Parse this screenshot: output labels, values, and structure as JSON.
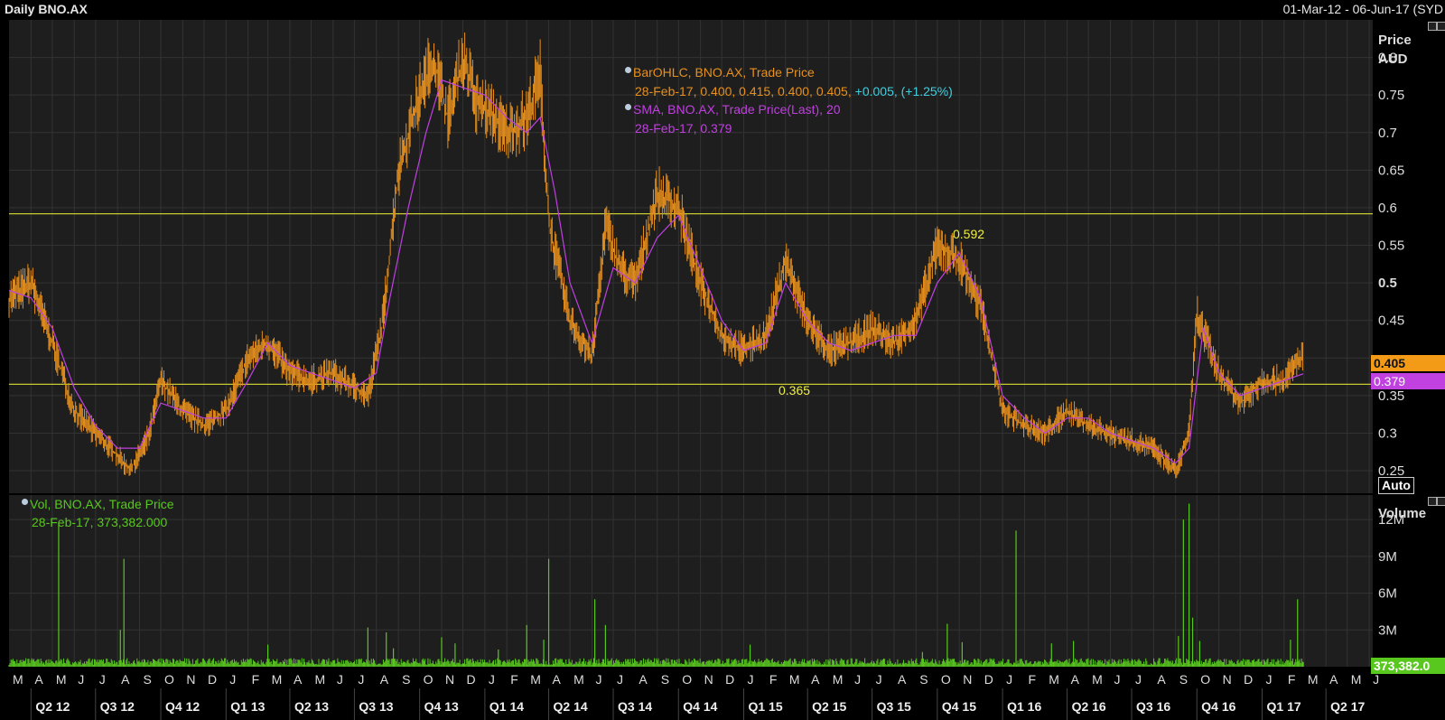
{
  "header": {
    "title": "Daily BNO.AX",
    "date_range": "01-Mar-12 - 06-Jun-17 (SYD"
  },
  "price_panel": {
    "axis_title_1": "Price",
    "axis_title_2": "AUD",
    "auto_button": "Auto",
    "legend": {
      "ohlc_name": "BarOHLC, BNO.AX, Trade Price",
      "ohlc_values": "28-Feb-17, 0.400, 0.415, 0.400, 0.405,",
      "ohlc_change": "+0.005, (+1.25%)",
      "sma_name": "SMA, BNO.AX, Trade Price(Last),  20",
      "sma_values": "28-Feb-17, 0.379"
    },
    "last_price_tag": "0.405",
    "sma_tag": "0.379",
    "line_labels": [
      "0.592",
      "0.365"
    ]
  },
  "volume_panel": {
    "axis_title": "Volume",
    "legend_name": "Vol, BNO.AX, Trade Price",
    "legend_values": "28-Feb-17, 373,382.000",
    "last_volume_tag": "373,382.0"
  },
  "colors": {
    "background": "#000000",
    "panel": "#1e1e1e",
    "grid": "#333333",
    "ohlc": "#e8901c",
    "sma": "#c040e0",
    "volume": "#58c81e",
    "horizontal_line": "#c8c830",
    "change_text": "#3ed0e0",
    "label_yellow": "#f0f040"
  },
  "chart_data": [
    {
      "type": "bar",
      "subtype": "ohlc",
      "title": "Daily BNO.AX",
      "ylabel": "Price AUD",
      "ylim": [
        0.22,
        0.85
      ],
      "yticks": [
        0.25,
        0.3,
        0.35,
        0.4,
        0.45,
        0.5,
        0.55,
        0.6,
        0.65,
        0.7,
        0.75,
        0.8
      ],
      "ytick_labels": [
        "0.25",
        "0.3",
        "0.35",
        "",
        "0.45",
        "0.5",
        "0.55",
        "0.6",
        "0.65",
        "0.7",
        "0.75",
        "0.8"
      ],
      "x_range": [
        "2012-03-01",
        "2017-06-06"
      ],
      "grid": true,
      "horizontal_lines": [
        0.592,
        0.365
      ],
      "series": [
        {
          "name": "BarOHLC, BNO.AX, Trade Price",
          "x": [
            "2012-03-01",
            "2012-04-01",
            "2012-05-01",
            "2012-06-01",
            "2012-07-01",
            "2012-08-01",
            "2012-08-20",
            "2012-09-15",
            "2012-10-01",
            "2012-11-01",
            "2012-12-01",
            "2013-01-01",
            "2013-02-01",
            "2013-03-01",
            "2013-04-01",
            "2013-05-01",
            "2013-06-01",
            "2013-07-01",
            "2013-07-20",
            "2013-08-10",
            "2013-09-01",
            "2013-10-01",
            "2013-10-20",
            "2013-11-10",
            "2013-12-01",
            "2013-12-20",
            "2014-01-15",
            "2014-02-01",
            "2014-03-01",
            "2014-03-20",
            "2014-04-01",
            "2014-05-01",
            "2014-06-01",
            "2014-06-20",
            "2014-07-10",
            "2014-08-01",
            "2014-09-01",
            "2014-10-01",
            "2014-11-01",
            "2014-12-01",
            "2015-01-01",
            "2015-02-01",
            "2015-03-01",
            "2015-04-01",
            "2015-05-01",
            "2015-06-01",
            "2015-07-01",
            "2015-08-01",
            "2015-09-01",
            "2015-10-01",
            "2015-11-01",
            "2015-12-01",
            "2016-01-01",
            "2016-02-01",
            "2016-03-01",
            "2016-04-01",
            "2016-05-01",
            "2016-06-01",
            "2016-07-01",
            "2016-08-01",
            "2016-09-01",
            "2016-09-20",
            "2016-10-01",
            "2016-11-01",
            "2016-12-01",
            "2017-01-01",
            "2017-02-01",
            "2017-02-28"
          ],
          "values": [
            0.48,
            0.5,
            0.42,
            0.33,
            0.3,
            0.27,
            0.25,
            0.3,
            0.37,
            0.33,
            0.31,
            0.33,
            0.4,
            0.42,
            0.38,
            0.37,
            0.38,
            0.36,
            0.35,
            0.45,
            0.65,
            0.75,
            0.8,
            0.72,
            0.8,
            0.74,
            0.72,
            0.7,
            0.72,
            0.78,
            0.58,
            0.45,
            0.4,
            0.58,
            0.52,
            0.5,
            0.62,
            0.6,
            0.5,
            0.43,
            0.41,
            0.43,
            0.53,
            0.45,
            0.41,
            0.42,
            0.44,
            0.42,
            0.45,
            0.55,
            0.53,
            0.47,
            0.33,
            0.31,
            0.3,
            0.33,
            0.31,
            0.3,
            0.29,
            0.28,
            0.25,
            0.3,
            0.46,
            0.38,
            0.34,
            0.37,
            0.37,
            0.405
          ]
        },
        {
          "name": "SMA, BNO.AX, Trade Price(Last),  20",
          "x": [
            "2012-03-01",
            "2012-04-01",
            "2012-05-01",
            "2012-06-01",
            "2012-07-01",
            "2012-08-01",
            "2012-09-01",
            "2012-10-01",
            "2012-11-01",
            "2012-12-01",
            "2013-01-01",
            "2013-02-01",
            "2013-03-01",
            "2013-04-01",
            "2013-05-01",
            "2013-06-01",
            "2013-07-01",
            "2013-08-01",
            "2013-08-20",
            "2013-09-15",
            "2013-10-10",
            "2013-11-01",
            "2013-12-01",
            "2014-01-01",
            "2014-02-01",
            "2014-03-01",
            "2014-03-20",
            "2014-04-10",
            "2014-05-01",
            "2014-06-01",
            "2014-07-01",
            "2014-08-01",
            "2014-09-01",
            "2014-10-01",
            "2014-11-01",
            "2014-12-01",
            "2015-01-01",
            "2015-02-01",
            "2015-03-01",
            "2015-04-01",
            "2015-05-01",
            "2015-06-01",
            "2015-07-01",
            "2015-08-01",
            "2015-09-01",
            "2015-10-01",
            "2015-11-01",
            "2015-12-01",
            "2016-01-01",
            "2016-02-01",
            "2016-03-01",
            "2016-04-01",
            "2016-05-01",
            "2016-06-01",
            "2016-07-01",
            "2016-08-01",
            "2016-09-01",
            "2016-09-20",
            "2016-10-10",
            "2016-11-01",
            "2016-12-01",
            "2017-01-01",
            "2017-02-01",
            "2017-02-28"
          ],
          "values": [
            0.49,
            0.48,
            0.44,
            0.36,
            0.31,
            0.28,
            0.28,
            0.34,
            0.33,
            0.32,
            0.32,
            0.37,
            0.42,
            0.39,
            0.38,
            0.37,
            0.36,
            0.38,
            0.48,
            0.6,
            0.7,
            0.77,
            0.76,
            0.75,
            0.72,
            0.7,
            0.72,
            0.62,
            0.5,
            0.42,
            0.52,
            0.5,
            0.56,
            0.59,
            0.52,
            0.45,
            0.41,
            0.42,
            0.5,
            0.45,
            0.42,
            0.41,
            0.42,
            0.43,
            0.43,
            0.5,
            0.54,
            0.48,
            0.35,
            0.32,
            0.3,
            0.32,
            0.32,
            0.3,
            0.29,
            0.28,
            0.26,
            0.28,
            0.44,
            0.38,
            0.35,
            0.36,
            0.37,
            0.379
          ]
        }
      ],
      "last_value": 0.405,
      "sma_last": 0.379
    },
    {
      "type": "bar",
      "title": "",
      "ylabel": "Volume",
      "ylim": [
        0,
        14000000
      ],
      "yticks": [
        3000000,
        6000000,
        9000000,
        12000000
      ],
      "ytick_labels": [
        "3M",
        "6M",
        "9M",
        "12M"
      ],
      "series": [
        {
          "name": "Vol, BNO.AX, Trade Price",
          "x": [
            "2012-05-10",
            "2012-08-05",
            "2012-08-10",
            "2013-03-01",
            "2013-07-20",
            "2013-08-15",
            "2013-08-25",
            "2013-11-01",
            "2013-11-20",
            "2014-01-20",
            "2014-03-01",
            "2014-03-25",
            "2014-04-01",
            "2014-06-05",
            "2014-06-20",
            "2015-01-10",
            "2015-09-10",
            "2015-10-15",
            "2015-11-05",
            "2016-01-20",
            "2016-03-10",
            "2016-04-10",
            "2016-09-05",
            "2016-09-12",
            "2016-09-20",
            "2016-09-25",
            "2016-10-05",
            "2017-02-10",
            "2017-02-20",
            "2017-02-28"
          ],
          "values": [
            11800000,
            3000000,
            8800000,
            1800000,
            3200000,
            2800000,
            1500000,
            2400000,
            1900000,
            1400000,
            3400000,
            2200000,
            8800000,
            5500000,
            3400000,
            1800000,
            1200000,
            3500000,
            2000000,
            11100000,
            1900000,
            2100000,
            2500000,
            12000000,
            13300000,
            4000000,
            2100000,
            2200000,
            5500000,
            373382
          ]
        }
      ],
      "last_value": 373382
    }
  ],
  "time_axis": {
    "months": [
      "M",
      "A",
      "M",
      "J",
      "J",
      "A",
      "S",
      "O",
      "N",
      "D",
      "J",
      "F",
      "M",
      "A",
      "M",
      "J",
      "J",
      "A",
      "S",
      "O",
      "N",
      "D",
      "J",
      "F",
      "M",
      "A",
      "M",
      "J",
      "J",
      "A",
      "S",
      "O",
      "N",
      "D",
      "J",
      "F",
      "M",
      "A",
      "M",
      "J",
      "J",
      "A",
      "S",
      "O",
      "N",
      "D",
      "J",
      "F",
      "M",
      "A",
      "M",
      "J",
      "J",
      "A",
      "S",
      "O",
      "N",
      "D",
      "J",
      "F",
      "M",
      "A",
      "M",
      "J"
    ],
    "quarters": [
      "Q2 12",
      "Q3 12",
      "Q4 12",
      "Q1 13",
      "Q2 13",
      "Q3 13",
      "Q4 13",
      "Q1 14",
      "Q2 14",
      "Q3 14",
      "Q4 14",
      "Q1 15",
      "Q2 15",
      "Q3 15",
      "Q4 15",
      "Q1 16",
      "Q2 16",
      "Q3 16",
      "Q4 16",
      "Q1 17",
      "Q2 17"
    ]
  }
}
